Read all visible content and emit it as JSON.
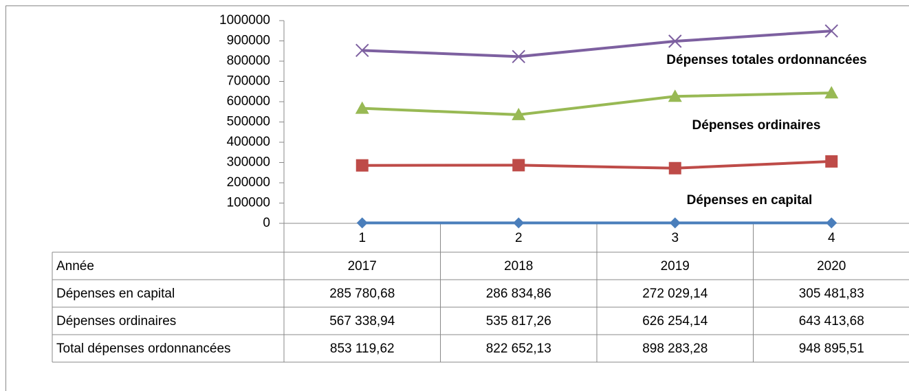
{
  "chart_data": {
    "type": "line",
    "categories": [
      "1",
      "2",
      "3",
      "4"
    ],
    "ylim": [
      0,
      1000000
    ],
    "yticks": [
      0,
      100000,
      200000,
      300000,
      400000,
      500000,
      600000,
      700000,
      800000,
      900000,
      1000000
    ],
    "series": [
      {
        "name": "Année",
        "color": "#4a7ebb",
        "marker": "diamond",
        "values": [
          2017,
          2018,
          2019,
          2020
        ]
      },
      {
        "name": "Dépenses en capital",
        "color": "#be4b48",
        "marker": "square",
        "values": [
          285780.68,
          286834.86,
          272029.14,
          305481.83
        ],
        "value_labels": [
          "285 780,68",
          "286 834,86",
          "272 029,14",
          "305 481,83"
        ]
      },
      {
        "name": "Dépenses ordinaires",
        "color": "#98b954",
        "marker": "triangle",
        "values": [
          567338.94,
          535817.26,
          626254.14,
          643413.68
        ],
        "value_labels": [
          "567 338,94",
          "535 817,26",
          "626 254,14",
          "643 413,68"
        ]
      },
      {
        "name": "Total dépenses ordonnancées",
        "color": "#7d60a0",
        "marker": "x",
        "values": [
          853119.62,
          822652.13,
          898283.28,
          948895.51
        ],
        "value_labels": [
          "853 119,62",
          "822 652,13",
          "898 283,28",
          "948 895,51"
        ]
      }
    ],
    "annotations": [
      "Dépenses totales ordonnancées",
      "Dépenses ordinaires",
      "Dépenses en capital"
    ]
  }
}
